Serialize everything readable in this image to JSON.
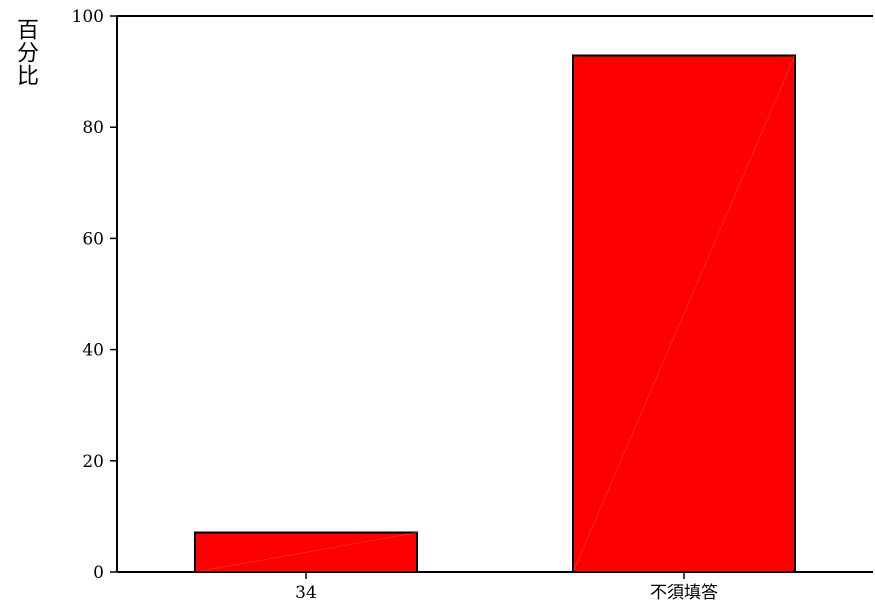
{
  "chart_data": {
    "type": "bar",
    "categories": [
      "34",
      "不須填答"
    ],
    "values": [
      7.1,
      92.9
    ],
    "title": "",
    "xlabel": "",
    "ylabel": "百分比",
    "ylim": [
      0,
      100
    ],
    "yticks": [
      0,
      20,
      40,
      60,
      80,
      100
    ],
    "grid": false,
    "legend": "none",
    "bar_color": "#ff0000",
    "bar_edge_color": "#000000"
  }
}
